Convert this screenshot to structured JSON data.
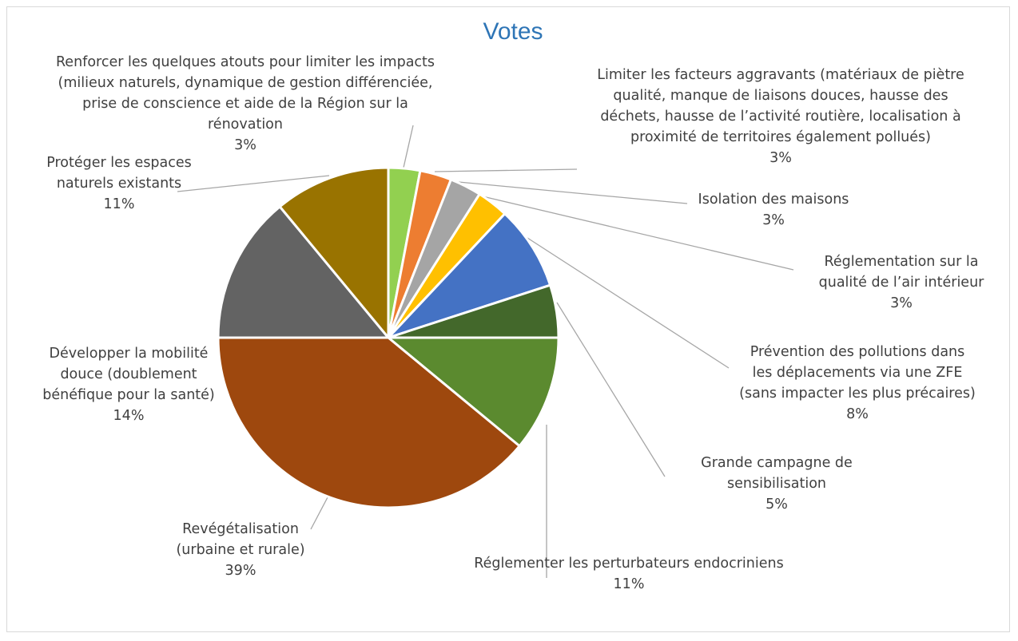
{
  "chart_data": {
    "type": "pie",
    "title": "Votes",
    "title_color": "#2e75b6",
    "series": [
      {
        "name": "Votes",
        "slices": [
          {
            "label": "Renforcer les quelques atouts pour limiter les impacts (milieux naturels, dynamique de gestion différenciée, prise de conscience et aide de la Région sur la rénovation",
            "percent_label": "3%",
            "value": 3,
            "color": "#92d050"
          },
          {
            "label": "Limiter les facteurs aggravants (matériaux de piètre qualité, manque de liaisons douces, hausse des déchets, hausse de l’activité routière, localisation à proximité de territoires également pollués)",
            "percent_label": "3%",
            "value": 3,
            "color": "#ed7d31"
          },
          {
            "label": "Isolation des maisons",
            "percent_label": "3%",
            "value": 3,
            "color": "#a5a5a5"
          },
          {
            "label": "Réglementation sur la qualité de l’air intérieur",
            "percent_label": "3%",
            "value": 3,
            "color": "#ffc000"
          },
          {
            "label": "Prévention des pollutions dans les déplacements via une ZFE (sans impacter les plus précaires)",
            "percent_label": "8%",
            "value": 8,
            "color": "#4472c4"
          },
          {
            "label": "Grande campagne de sensibilisation",
            "percent_label": "5%",
            "value": 5,
            "color": "#43682b"
          },
          {
            "label": "Réglementer les perturbateurs endocriniens",
            "percent_label": "11%",
            "value": 11,
            "color": "#5b8a2f"
          },
          {
            "label": "Revégétalisation (urbaine et rurale)",
            "percent_label": "39%",
            "value": 39,
            "color": "#9e480e"
          },
          {
            "label": "Développer la mobilité douce (doublement bénéfique pour la santé)",
            "percent_label": "14%",
            "value": 14,
            "color": "#636363"
          },
          {
            "label": "Protéger les espaces naturels existants",
            "percent_label": "11%",
            "value": 11,
            "color": "#997300"
          }
        ]
      }
    ],
    "start": "12 o'clock",
    "direction": "clockwise",
    "labels": "outside with leader lines"
  },
  "display_lines": [
    [
      "Renforcer les quelques atouts pour limiter les impacts",
      "(milieux naturels, dynamique de gestion différenciée,",
      "prise de conscience et aide de la Région sur la",
      "rénovation"
    ],
    [
      "Limiter les facteurs aggravants (matériaux de piètre",
      "qualité, manque de liaisons douces, hausse des",
      "déchets, hausse de l’activité routière, localisation à",
      "proximité de territoires également pollués)"
    ],
    [
      "Isolation des maisons"
    ],
    [
      "Réglementation sur la",
      "qualité de l’air intérieur"
    ],
    [
      "Prévention des pollutions dans",
      "les déplacements via une ZFE",
      "(sans impacter les plus précaires)"
    ],
    [
      "Grande campagne de",
      "sensibilisation"
    ],
    [
      "Réglementer les perturbateurs endocriniens"
    ],
    [
      "Revégétalisation",
      "(urbaine et rurale)"
    ],
    [
      "Développer la mobilité",
      "douce (doublement",
      "bénéfique pour la santé)"
    ],
    [
      "Protéger les espaces",
      "naturels existants"
    ]
  ]
}
